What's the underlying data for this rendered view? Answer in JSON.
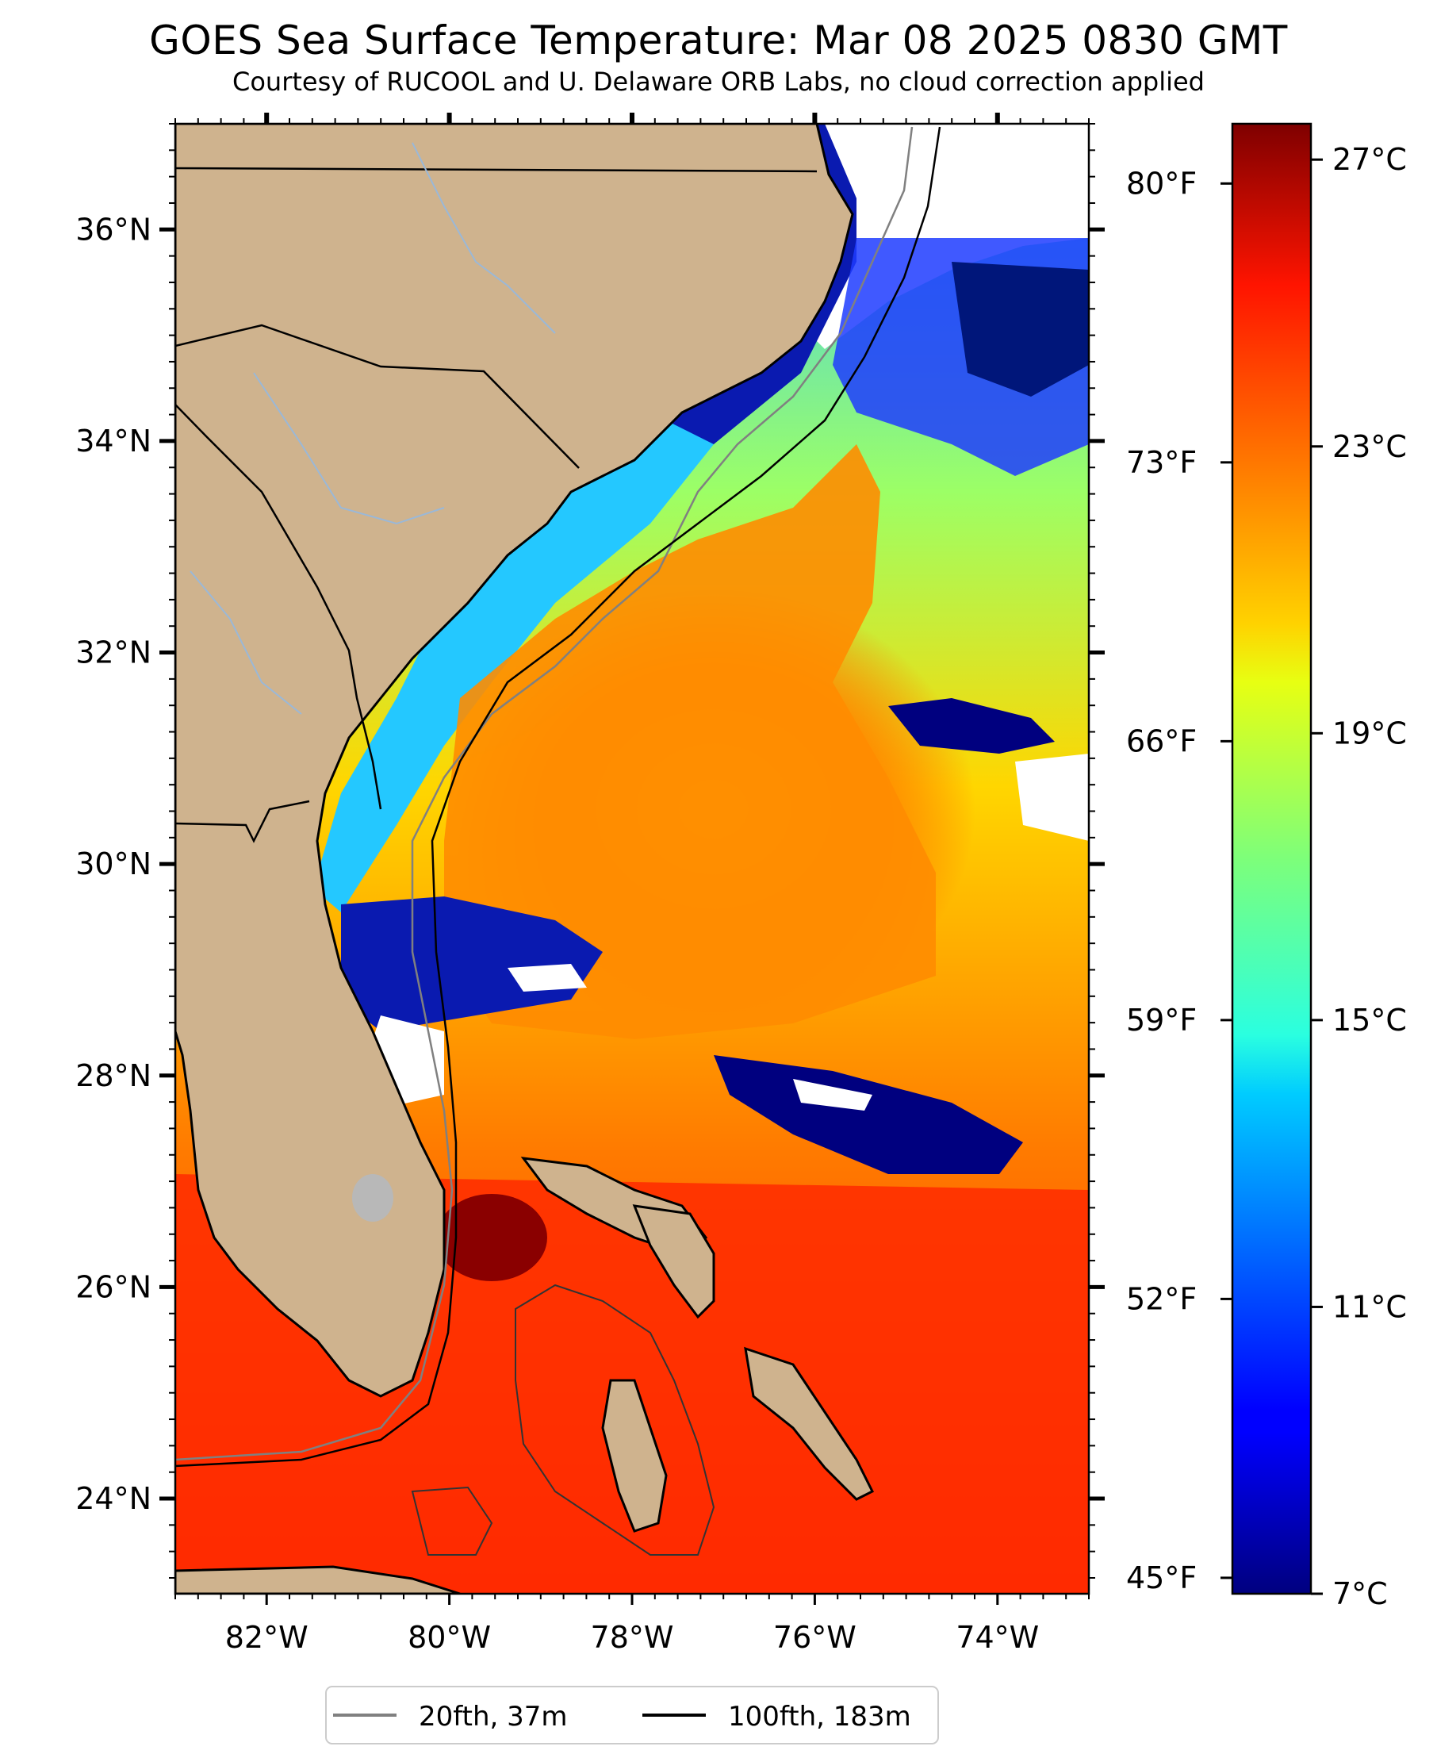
{
  "title": "GOES Sea Surface Temperature: Mar 08 2025 0830 GMT",
  "subtitle": "Courtesy of RUCOOL and U. Delaware ORB Labs, no cloud correction applied",
  "map": {
    "lon_range": [
      -83,
      -73
    ],
    "lat_range": [
      23.1,
      37
    ],
    "lon_ticks": [
      {
        "value": -82,
        "label": "82°W"
      },
      {
        "value": -80,
        "label": "80°W"
      },
      {
        "value": -78,
        "label": "78°W"
      },
      {
        "value": -76,
        "label": "76°W"
      },
      {
        "value": -74,
        "label": "74°W"
      }
    ],
    "lat_ticks": [
      {
        "value": 36,
        "label": "36°N"
      },
      {
        "value": 34,
        "label": "34°N"
      },
      {
        "value": 32,
        "label": "32°N"
      },
      {
        "value": 30,
        "label": "30°N"
      },
      {
        "value": 28,
        "label": "28°N"
      },
      {
        "value": 26,
        "label": "26°N"
      },
      {
        "value": 24,
        "label": "24°N"
      }
    ],
    "colors": {
      "land": "#cfb38e",
      "cloud": "#ffffff",
      "river": "#9ab8d8",
      "border": "#000000"
    }
  },
  "colorbar": {
    "range_c": [
      7,
      27.5
    ],
    "celsius_ticks": [
      {
        "value": 27,
        "label": "27°C"
      },
      {
        "value": 23,
        "label": "23°C"
      },
      {
        "value": 19,
        "label": "19°C"
      },
      {
        "value": 15,
        "label": "15°C"
      },
      {
        "value": 11,
        "label": "11°C"
      },
      {
        "value": 7,
        "label": "7°C"
      }
    ],
    "fahrenheit_ticks": [
      {
        "value": 80,
        "label": "80°F"
      },
      {
        "value": 73,
        "label": "73°F"
      },
      {
        "value": 66,
        "label": "66°F"
      },
      {
        "value": 59,
        "label": "59°F"
      },
      {
        "value": 52,
        "label": "52°F"
      },
      {
        "value": 45,
        "label": "45°F"
      }
    ],
    "colormap": "jet"
  },
  "legend": {
    "items": [
      {
        "label": "20fth, 37m",
        "color": "#808080"
      },
      {
        "label": "100fth, 183m",
        "color": "#000000"
      }
    ]
  }
}
